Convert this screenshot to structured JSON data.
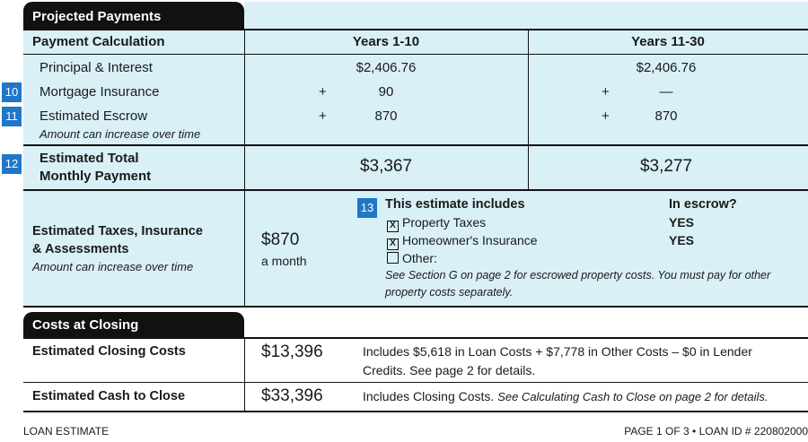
{
  "projected_payments": {
    "title": "Projected Payments",
    "col_header_label": "Payment Calculation",
    "col1_header": "Years 1-10",
    "col2_header": "Years 11-30",
    "rows": [
      {
        "badge": "",
        "label": "Principal & Interest",
        "sublabel": "",
        "col1_op": "",
        "col1_value": "$2,406.76",
        "col2_op": "",
        "col2_value": "$2,406.76"
      },
      {
        "badge": "10",
        "label": "Mortgage Insurance",
        "sublabel": "",
        "col1_op": "+",
        "col1_value": "90",
        "col2_op": "+",
        "col2_value": "—"
      },
      {
        "badge": "11",
        "label": "Estimated Escrow",
        "sublabel": "Amount can increase over time",
        "col1_op": "+",
        "col1_value": "870",
        "col2_op": "+",
        "col2_value": "870"
      }
    ],
    "total": {
      "badge": "12",
      "label_line1": "Estimated Total",
      "label_line2": "Monthly Payment",
      "col1_value": "$3,367",
      "col2_value": "$3,277"
    }
  },
  "taxes": {
    "badge": "13",
    "label_line1": "Estimated Taxes, Insurance",
    "label_line2": "& Assessments",
    "sublabel": "Amount can increase over time",
    "amount": "$870",
    "period": "a month",
    "includes_header": "This estimate includes",
    "escrow_header": "In escrow?",
    "items": [
      {
        "checked": "X",
        "label": "Property Taxes",
        "escrow": "YES"
      },
      {
        "checked": "X",
        "label": "Homeowner's Insurance",
        "escrow": "YES"
      },
      {
        "checked": "",
        "label": "Other:",
        "escrow": ""
      }
    ],
    "note_line1": "See Section G on page 2 for escrowed property costs. You must pay for other",
    "note_line2": "property costs separately."
  },
  "closing": {
    "title": "Costs at Closing",
    "rows": [
      {
        "label": "Estimated Closing Costs",
        "amount": "$13,396",
        "desc_line1": "Includes $5,618 in Loan Costs + $7,778 in Other Costs – $0 in Lender",
        "desc_line2": "Credits. See page 2 for details."
      },
      {
        "label": "Estimated Cash to Close",
        "amount": "$33,396",
        "desc_plain": "Includes Closing Costs. ",
        "desc_italic": "See Calculating Cash to Close on page 2 for details."
      }
    ]
  },
  "footer": {
    "left": "LOAN ESTIMATE",
    "right": "PAGE 1 OF 3 • LOAN ID # 220802000"
  },
  "colors": {
    "light_blue": "#d9f0f7",
    "badge_blue": "#1f77c9",
    "dark": "#111111"
  }
}
